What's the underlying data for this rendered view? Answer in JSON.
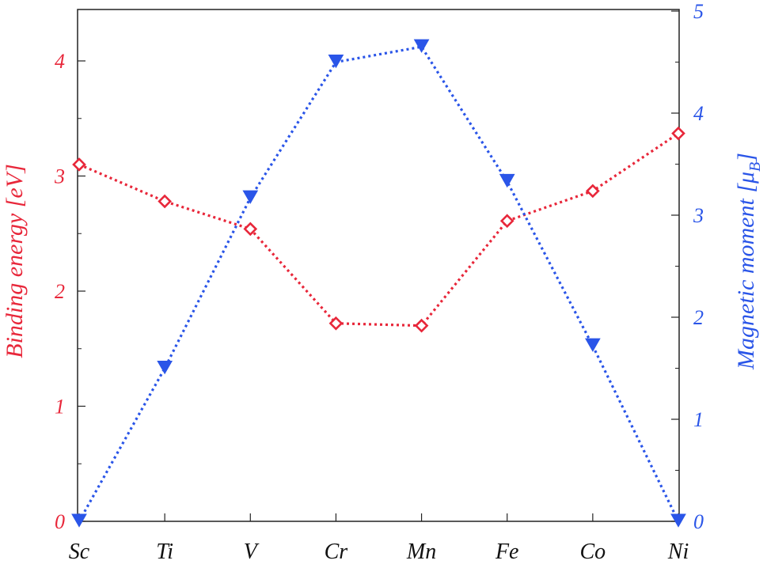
{
  "chart_data": {
    "type": "line",
    "categories": [
      "Sc",
      "Ti",
      "V",
      "Cr",
      "Mn",
      "Fe",
      "Co",
      "Ni"
    ],
    "y_left": {
      "label": "Binding energy [eV]",
      "ylim": [
        0,
        4.5
      ],
      "ticks": [
        "0",
        "1",
        "2",
        "3",
        "4"
      ],
      "color": "#e8273a"
    },
    "y_right": {
      "label": "Magnetic moment [μ",
      "label_sub": "B",
      "label_end": "]",
      "ylim": [
        0,
        5
      ],
      "ticks": [
        "0",
        "1",
        "2",
        "3",
        "4",
        "5"
      ],
      "color": "#2a55e8"
    },
    "series": [
      {
        "axis": "left",
        "marker": "diamond",
        "color": "#e8273a",
        "values": [
          3.1,
          2.78,
          2.54,
          1.72,
          1.7,
          2.61,
          2.87,
          3.37
        ]
      },
      {
        "axis": "right",
        "marker": "triangle-down",
        "color": "#2a55e8",
        "values": [
          0.0,
          1.5,
          3.17,
          4.5,
          4.65,
          3.33,
          1.72,
          0.0
        ]
      }
    ],
    "grid": false,
    "legend": "none"
  }
}
